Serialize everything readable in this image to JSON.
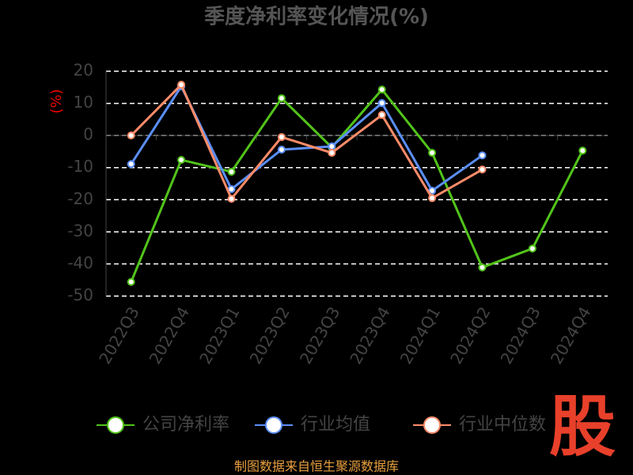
{
  "chart_data": {
    "type": "line",
    "title": "季度净利率变化情况(%)",
    "y_label": "(%)",
    "categories": [
      "2022Q3",
      "2022Q4",
      "2023Q1",
      "2023Q2",
      "2023Q3",
      "2023Q4",
      "2024Q1",
      "2024Q2",
      "2024Q3",
      "2024Q4"
    ],
    "series": [
      {
        "name": "公司净利率",
        "color": "#52c41a",
        "values": [
          -45.6,
          -7.6,
          -11.3,
          11.6,
          -3.7,
          14.3,
          -5.4,
          -41.1,
          -35.2,
          -4.7
        ]
      },
      {
        "name": "行业均值",
        "color": "#5b8ff9",
        "values": [
          -8.9,
          15.3,
          -16.7,
          -4.4,
          -3.4,
          10.1,
          -17.2,
          -6.2,
          null,
          null
        ]
      },
      {
        "name": "行业中位数",
        "color": "#ff8c69",
        "values": [
          0,
          15.8,
          -19.7,
          -0.5,
          -5.4,
          6.4,
          -19.5,
          -10.6,
          null,
          null
        ]
      }
    ],
    "ylim": [
      -50,
      20
    ],
    "yticks": [
      -50,
      -40,
      -30,
      -20,
      -10,
      0,
      10,
      20
    ],
    "grid": true,
    "source": "制图数据来自恒生聚源数据库",
    "logo": "股"
  }
}
